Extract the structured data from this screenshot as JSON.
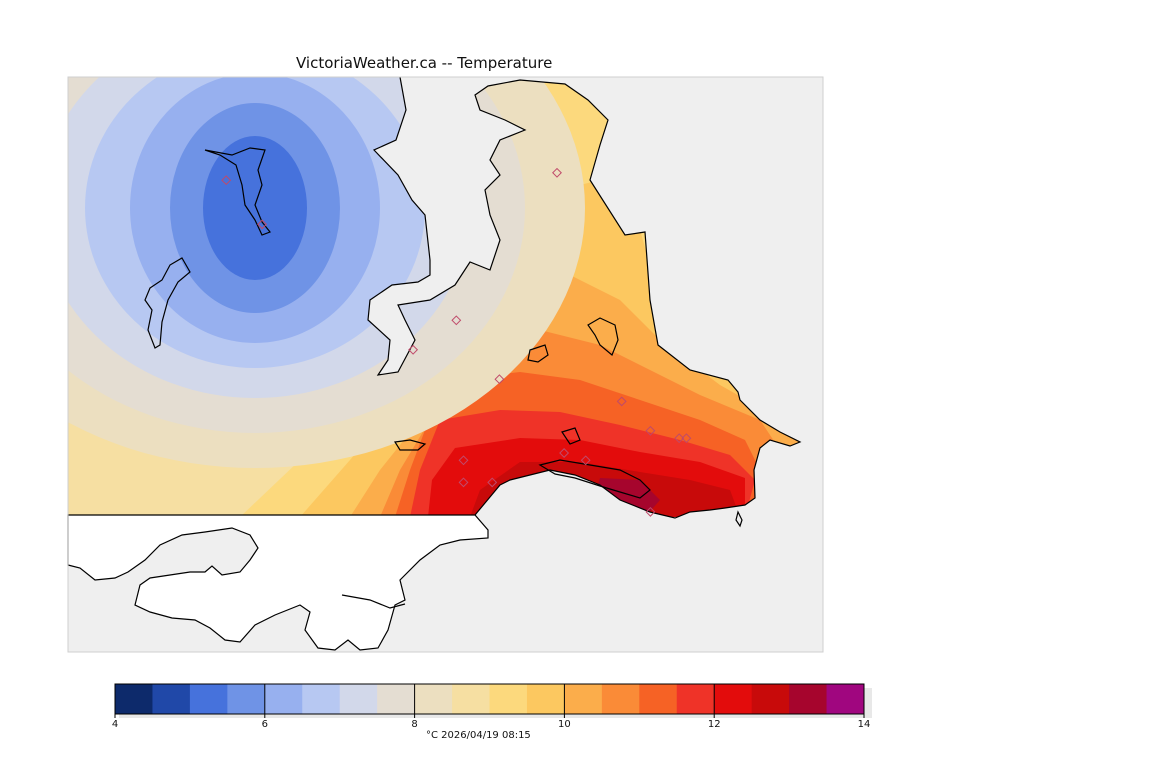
{
  "title": "VictoriaWeather.ca -- Temperature",
  "colorbar": {
    "levels": [
      4,
      4.5,
      5,
      5.5,
      6,
      6.5,
      7,
      7.5,
      8,
      8.5,
      9,
      9.5,
      10,
      10.5,
      11,
      11.5,
      12,
      12.5,
      13,
      13.5,
      14
    ],
    "colors": [
      "#0d2a6b",
      "#2048a8",
      "#4672dc",
      "#6f93e6",
      "#97b0ef",
      "#b7c8f2",
      "#d2d8ea",
      "#e4ddd2",
      "#ecdfc0",
      "#f6dfa2",
      "#fcd97d",
      "#fcc860",
      "#fbad4b",
      "#fa8b37",
      "#f66225",
      "#ef3328",
      "#e30c0c",
      "#c80a0a",
      "#a6052d",
      "#a0067f"
    ],
    "tick_labels": [
      "4",
      "6",
      "8",
      "10",
      "12",
      "14"
    ],
    "unit_and_time": "°C  2026/04/19 08:15"
  },
  "stations": [
    {
      "lon": -123.93,
      "lat": 48.94
    },
    {
      "lon": -123.88,
      "lat": 48.88
    },
    {
      "lon": -123.47,
      "lat": 48.95
    },
    {
      "lon": -123.61,
      "lat": 48.75
    },
    {
      "lon": -123.67,
      "lat": 48.71
    },
    {
      "lon": -123.55,
      "lat": 48.67
    },
    {
      "lon": -123.38,
      "lat": 48.64
    },
    {
      "lon": -123.34,
      "lat": 48.6
    },
    {
      "lon": -123.3,
      "lat": 48.59
    },
    {
      "lon": -123.29,
      "lat": 48.59
    },
    {
      "lon": -123.6,
      "lat": 48.56
    },
    {
      "lon": -123.6,
      "lat": 48.53
    },
    {
      "lon": -123.56,
      "lat": 48.53
    },
    {
      "lon": -123.46,
      "lat": 48.57
    },
    {
      "lon": -123.43,
      "lat": 48.56
    },
    {
      "lon": -123.34,
      "lat": 48.49
    }
  ],
  "colors": {
    "water": "#efefef",
    "land_outside": "#ffffff",
    "coastline": "#000000",
    "station_marker": "#c04a6a"
  }
}
